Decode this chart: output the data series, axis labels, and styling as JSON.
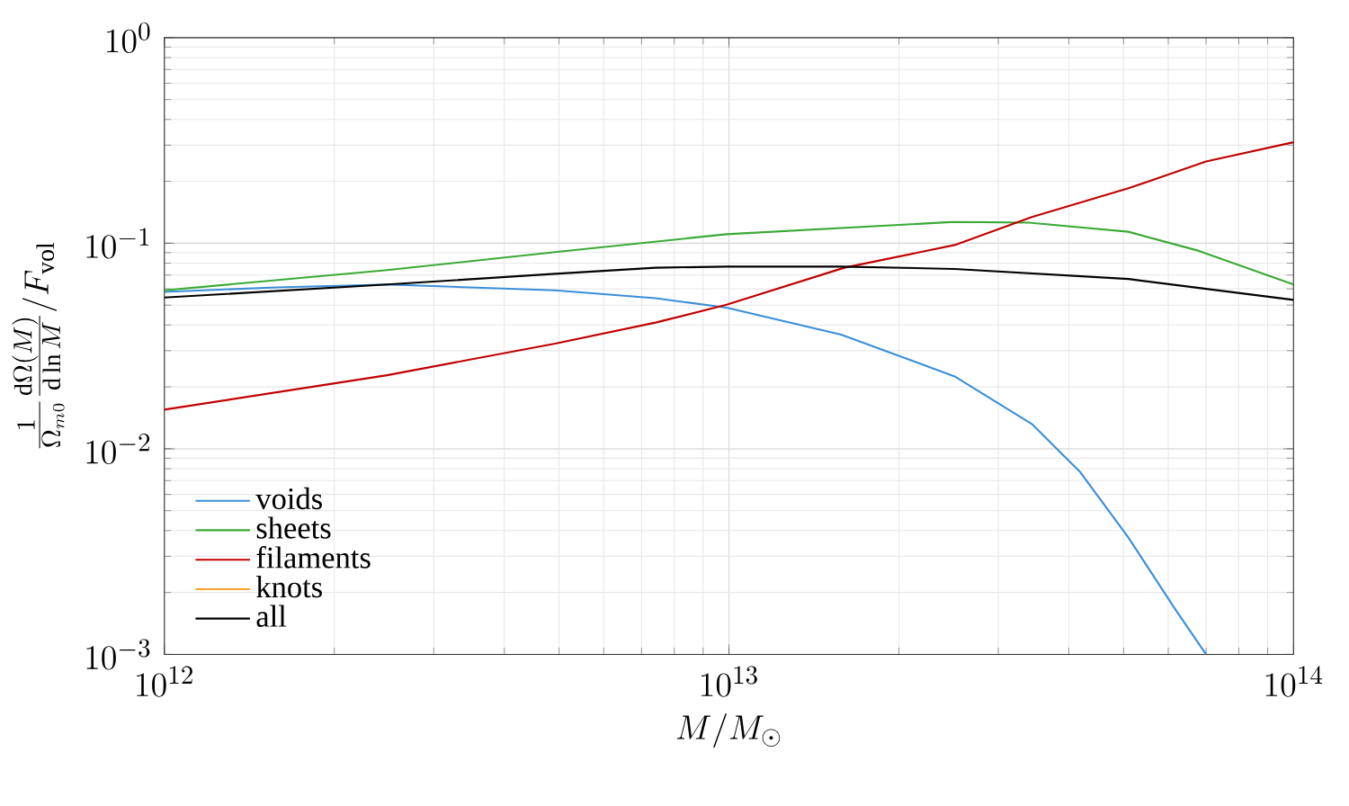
{
  "chart_data": {
    "type": "line",
    "xlabel": "M/M_\\odot",
    "ylabel": "\\frac{1}{\\Omega_{m0}}\\frac{\\mathrm{d}\\Omega(M)}{\\mathrm{d}\\ln M}\\Big/F_{\\mathrm{vol}}",
    "log": "xy",
    "grid": true,
    "legend": "bottom left",
    "line_style": "solid",
    "xlim": [
      1000000000000.0,
      100000000000000.0
    ],
    "ylim": [
      0.001,
      1
    ],
    "xticks": [
      {
        "value": 1000000000000.0,
        "label": "10^{12}"
      },
      {
        "value": 10000000000000.0,
        "label": "10^{13}"
      },
      {
        "value": 100000000000000.0,
        "label": "10^{14}"
      }
    ],
    "yticks": [
      {
        "value": 0.001,
        "label": "10^{-3}"
      },
      {
        "value": 0.01,
        "label": "10^{-2}"
      },
      {
        "value": 0.1,
        "label": "10^{-1}"
      },
      {
        "value": 1,
        "label": "10^{0}"
      }
    ],
    "series": [
      {
        "name": "voids",
        "color": "#3a8fd8",
        "x": [
          1000000000000.0,
          1580000000000.0,
          2480000000000.0,
          4920000000000.0,
          7410000000000.0,
          9900000000000.0,
          15800000000000.0,
          25100000000000.0,
          34400000000000.0,
          41900000000000.0,
          51000000000000.0,
          61700000000000.0,
          70000000000000.0
        ],
        "values": [
          0.058,
          0.061,
          0.063,
          0.059,
          0.054,
          0.0486,
          0.0359,
          0.0225,
          0.0132,
          0.0077,
          0.0037,
          0.00166,
          0.001
        ]
      },
      {
        "name": "sheets",
        "color": "#3aaa35",
        "x": [
          1000000000000.0,
          2480000000000.0,
          4920000000000.0,
          9900000000000.0,
          25100000000000.0,
          34000000000000.0,
          51000000000000.0,
          68000000000000.0,
          100000000000000.0
        ],
        "values": [
          0.059,
          0.074,
          0.0905,
          0.1106,
          0.127,
          0.126,
          0.1137,
          0.0918,
          0.063
        ]
      },
      {
        "name": "filaments",
        "color": "#c00000",
        "x": [
          1000000000000.0,
          2480000000000.0,
          4920000000000.0,
          7410000000000.0,
          9900000000000.0,
          16000000000000.0,
          25100000000000.0,
          34400000000000.0,
          51000000000000.0,
          70000000000000.0,
          100000000000000.0
        ],
        "values": [
          0.0155,
          0.0228,
          0.0325,
          0.0411,
          0.0502,
          0.076,
          0.098,
          0.134,
          0.185,
          0.25,
          0.31
        ]
      },
      {
        "name": "knots",
        "color": "#ffa030"
      },
      {
        "name": "all",
        "color": "#000000",
        "x": [
          1000000000000.0,
          2480000000000.0,
          4920000000000.0,
          7410000000000.0,
          9900000000000.0,
          15800000000000.0,
          25100000000000.0,
          51000000000000.0,
          100000000000000.0
        ],
        "values": [
          0.0544,
          0.063,
          0.071,
          0.076,
          0.077,
          0.077,
          0.075,
          0.067,
          0.053
        ]
      }
    ]
  }
}
